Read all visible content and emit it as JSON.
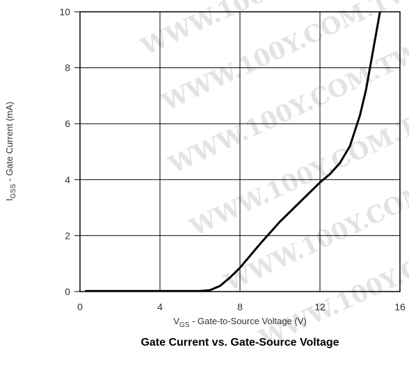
{
  "chart_data": {
    "type": "line",
    "title": "Gate Current vs. Gate-Source Voltage",
    "xlabel": {
      "main": "V",
      "sub": "GS",
      "rest": " - Gate-to-Source Voltage (V)"
    },
    "ylabel": {
      "main": "I",
      "sub": "GSS",
      "rest": " - Gate Current (mA)"
    },
    "xlim": [
      0,
      16
    ],
    "ylim": [
      0,
      10
    ],
    "xticks": [
      "0",
      "4",
      "8",
      "12",
      "16"
    ],
    "yticks": [
      "0",
      "2",
      "4",
      "6",
      "8",
      "10"
    ],
    "grid": true,
    "series": [
      {
        "color": "#000000",
        "x": [
          0.3,
          2,
          4,
          6,
          6.5,
          7,
          7.5,
          8,
          9,
          10,
          11,
          12,
          12.5,
          13,
          13.5,
          14,
          14.3,
          14.6,
          15
        ],
        "y": [
          0.02,
          0.02,
          0.02,
          0.02,
          0.05,
          0.2,
          0.5,
          0.85,
          1.7,
          2.5,
          3.2,
          3.9,
          4.2,
          4.6,
          5.2,
          6.3,
          7.2,
          8.4,
          10
        ]
      }
    ]
  },
  "watermark": "WWW.100Y.COM.TW"
}
